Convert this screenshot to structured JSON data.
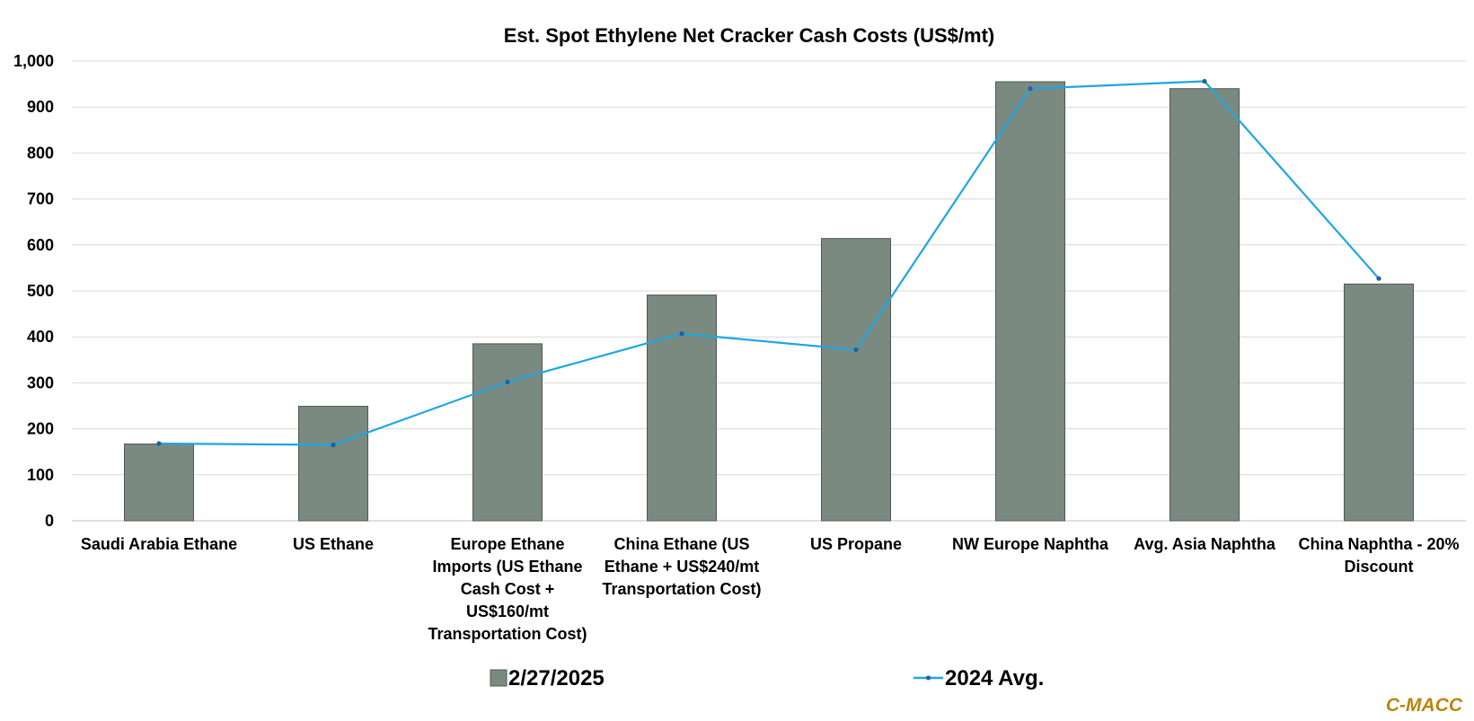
{
  "chart_data": {
    "type": "bar",
    "title": "Est. Spot Ethylene Net Cracker Cash Costs (US$/mt)",
    "categories": [
      [
        "Saudi Arabia Ethane"
      ],
      [
        "US Ethane"
      ],
      [
        "Europe Ethane",
        "Imports (US Ethane",
        "Cash Cost +",
        "US$160/mt",
        "Transportation Cost)"
      ],
      [
        "China Ethane (US",
        "Ethane + US$240/mt",
        "Transportation Cost)"
      ],
      [
        "US Propane"
      ],
      [
        "NW Europe Naphtha"
      ],
      [
        "Avg. Asia Naphtha"
      ],
      [
        "China Naphtha - 20%",
        "Discount"
      ]
    ],
    "series": [
      {
        "name": "2/27/2025",
        "type": "bar",
        "color": "#7a8a80",
        "values": [
          167,
          249,
          385,
          491,
          614,
          955,
          940,
          515
        ]
      },
      {
        "name": "2024 Avg.",
        "type": "line",
        "color": "#1ea7e1",
        "values": [
          168,
          165,
          302,
          407,
          372,
          940,
          956,
          527
        ]
      }
    ],
    "ylim": [
      0,
      1000
    ],
    "yticks": [
      "0",
      "100",
      "200",
      "300",
      "400",
      "500",
      "600",
      "700",
      "800",
      "900",
      "1,000"
    ],
    "grid": true,
    "legend_position": "bottom",
    "gridline_color": "#d9d9d9",
    "bar_stroke_color": "#4d5a52"
  },
  "watermark": {
    "text": "C-MACC",
    "color": "#b8860b"
  }
}
